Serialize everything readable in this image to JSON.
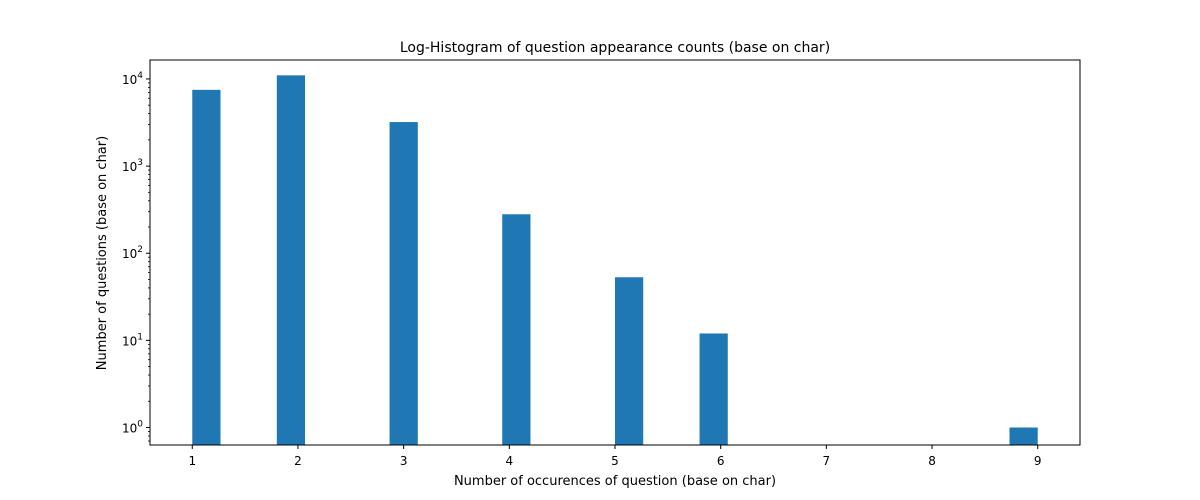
{
  "chart_data": {
    "type": "bar",
    "title": "Log-Histogram of question appearance counts (base on char)",
    "xlabel": "Number of occurences of question (base on char)",
    "ylabel": "Number of questions (base on char)",
    "yscale": "log",
    "xlim": [
      0.6,
      9.4
    ],
    "ylim": [
      0.63,
      16500
    ],
    "x_ticks": [
      1,
      2,
      3,
      4,
      5,
      6,
      7,
      8,
      9
    ],
    "y_ticks": [
      {
        "value": 1,
        "base": "10",
        "exp": "0"
      },
      {
        "value": 10,
        "base": "10",
        "exp": "1"
      },
      {
        "value": 100,
        "base": "10",
        "exp": "2"
      },
      {
        "value": 1000,
        "base": "10",
        "exp": "3"
      },
      {
        "value": 10000,
        "base": "10",
        "exp": "4"
      }
    ],
    "bar_width": 0.267,
    "color": "#1f77b4",
    "bars": [
      {
        "x_start": 1.0,
        "count": 7500
      },
      {
        "x_start": 1.8,
        "count": 11000
      },
      {
        "x_start": 2.867,
        "count": 3200
      },
      {
        "x_start": 3.933,
        "count": 280
      },
      {
        "x_start": 5.0,
        "count": 53
      },
      {
        "x_start": 5.8,
        "count": 12
      },
      {
        "x_start": 8.733,
        "count": 1
      }
    ]
  }
}
